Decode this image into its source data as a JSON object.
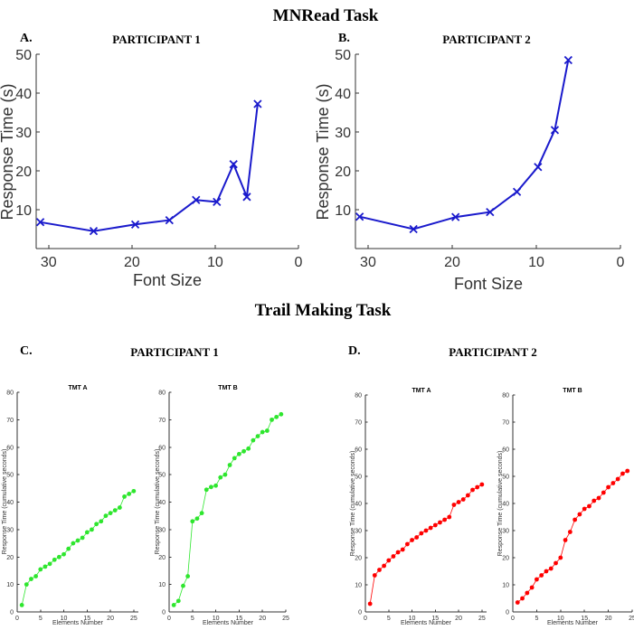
{
  "sections": {
    "mnread_title": "MNRead Task",
    "trail_title": "Trail Making Task"
  },
  "panel_letters": {
    "a": "A.",
    "b": "B.",
    "c": "C.",
    "d": "D."
  },
  "participants": {
    "p1": "PARTICIPANT 1",
    "p2": "PARTICIPANT 2"
  },
  "colors": {
    "mnread_line": "#1a1acc",
    "tmt_p1": "#2ee62e",
    "tmt_p2": "#ff0000"
  },
  "chart_data": [
    {
      "id": "mnread-p1",
      "type": "line",
      "xlabel": "Font Size",
      "ylabel": "Response Time (s)",
      "xlim": [
        31.5,
        0
      ],
      "ylim": [
        0,
        50
      ],
      "xticks": [
        30,
        20,
        10,
        0
      ],
      "yticks": [
        10,
        20,
        30,
        40,
        50
      ],
      "marker": "x",
      "x": [
        31,
        24.6,
        19.6,
        15.5,
        12.3,
        9.8,
        7.8,
        6.2,
        4.9
      ],
      "y": [
        6.8,
        4.5,
        6.2,
        7.3,
        12.5,
        12.0,
        21.7,
        13.3,
        37.2
      ]
    },
    {
      "id": "mnread-p2",
      "type": "line",
      "xlabel": "Font Size",
      "ylabel": "Response Time (s)",
      "xlim": [
        31.5,
        0
      ],
      "ylim": [
        0,
        50
      ],
      "xticks": [
        30,
        20,
        10,
        0
      ],
      "yticks": [
        10,
        20,
        30,
        40,
        50
      ],
      "marker": "x",
      "x": [
        31,
        24.6,
        19.6,
        15.5,
        12.3,
        9.8,
        7.8,
        6.2
      ],
      "y": [
        8.2,
        5.0,
        8.1,
        9.4,
        14.6,
        21.0,
        30.5,
        48.5
      ]
    },
    {
      "id": "tmt-a-p1",
      "type": "line",
      "title": "TMT A",
      "xlabel": "Elements Number",
      "ylabel": "Response Time (cumulative seconds)",
      "xlim": [
        0,
        26
      ],
      "ylim": [
        0,
        80
      ],
      "xticks": [
        0,
        5,
        10,
        15,
        20,
        25
      ],
      "yticks": [
        0,
        10,
        20,
        30,
        40,
        50,
        60,
        70,
        80
      ],
      "marker": "dot",
      "x": [
        1,
        2,
        3,
        4,
        5,
        6,
        7,
        8,
        9,
        10,
        11,
        12,
        13,
        14,
        15,
        16,
        17,
        18,
        19,
        20,
        21,
        22,
        23,
        24,
        25
      ],
      "y": [
        2.5,
        10,
        12,
        13,
        15.5,
        16.5,
        17.5,
        19,
        20,
        21,
        23,
        25,
        26,
        27,
        29,
        30,
        32,
        33,
        35,
        36,
        37,
        38,
        42,
        43,
        44
      ]
    },
    {
      "id": "tmt-b-p1",
      "type": "line",
      "title": "TMT B",
      "xlabel": "Elements Number",
      "ylabel": "Response Time (cumulative seconds)",
      "xlim": [
        0,
        25
      ],
      "ylim": [
        0,
        80
      ],
      "xticks": [
        0,
        5,
        10,
        15,
        20,
        25
      ],
      "yticks": [
        0,
        10,
        20,
        30,
        40,
        50,
        60,
        70,
        80
      ],
      "marker": "dot",
      "x": [
        1,
        2,
        3,
        4,
        5,
        6,
        7,
        8,
        9,
        10,
        11,
        12,
        13,
        14,
        15,
        16,
        17,
        18,
        19,
        20,
        21,
        22,
        23,
        24
      ],
      "y": [
        2.5,
        4,
        9.5,
        13,
        33,
        34,
        36,
        44.5,
        45.5,
        46,
        49,
        50,
        53.5,
        56,
        57.5,
        58.5,
        59.5,
        62.5,
        64,
        65.5,
        66,
        70,
        71,
        72
      ]
    },
    {
      "id": "tmt-a-p2",
      "type": "line",
      "title": "TMT A",
      "xlabel": "Elements Number",
      "ylabel": "Response Time (cumulative seconds)",
      "xlim": [
        0,
        26
      ],
      "ylim": [
        0,
        80
      ],
      "xticks": [
        0,
        5,
        10,
        15,
        20,
        25
      ],
      "yticks": [
        0,
        10,
        20,
        30,
        40,
        50,
        60,
        70,
        80
      ],
      "marker": "dot",
      "x": [
        1,
        2,
        3,
        4,
        5,
        6,
        7,
        8,
        9,
        10,
        11,
        12,
        13,
        14,
        15,
        16,
        17,
        18,
        19,
        20,
        21,
        22,
        23,
        24,
        25
      ],
      "y": [
        3,
        13.5,
        15.5,
        17,
        19,
        20.5,
        22,
        23,
        25,
        26.5,
        27.5,
        29,
        30,
        31,
        32,
        33,
        34,
        35,
        39.5,
        40.5,
        41.5,
        43,
        45,
        46,
        47
      ]
    },
    {
      "id": "tmt-b-p2",
      "type": "line",
      "title": "TMT B",
      "xlabel": "Elements Number",
      "ylabel": "Response Time (cumulative seconds)",
      "xlim": [
        0,
        25
      ],
      "ylim": [
        0,
        80
      ],
      "xticks": [
        0,
        5,
        10,
        15,
        20,
        25
      ],
      "yticks": [
        0,
        10,
        20,
        30,
        40,
        50,
        60,
        70,
        80
      ],
      "marker": "dot",
      "x": [
        1,
        2,
        3,
        4,
        5,
        6,
        7,
        8,
        9,
        10,
        11,
        12,
        13,
        14,
        15,
        16,
        17,
        18,
        19,
        20,
        21,
        22,
        23,
        24
      ],
      "y": [
        3.5,
        5,
        7,
        9,
        12,
        13.5,
        15,
        16,
        18,
        20,
        26.5,
        29.5,
        34,
        36,
        38,
        39,
        41,
        42,
        44,
        46,
        47.5,
        49,
        51,
        52
      ]
    }
  ]
}
